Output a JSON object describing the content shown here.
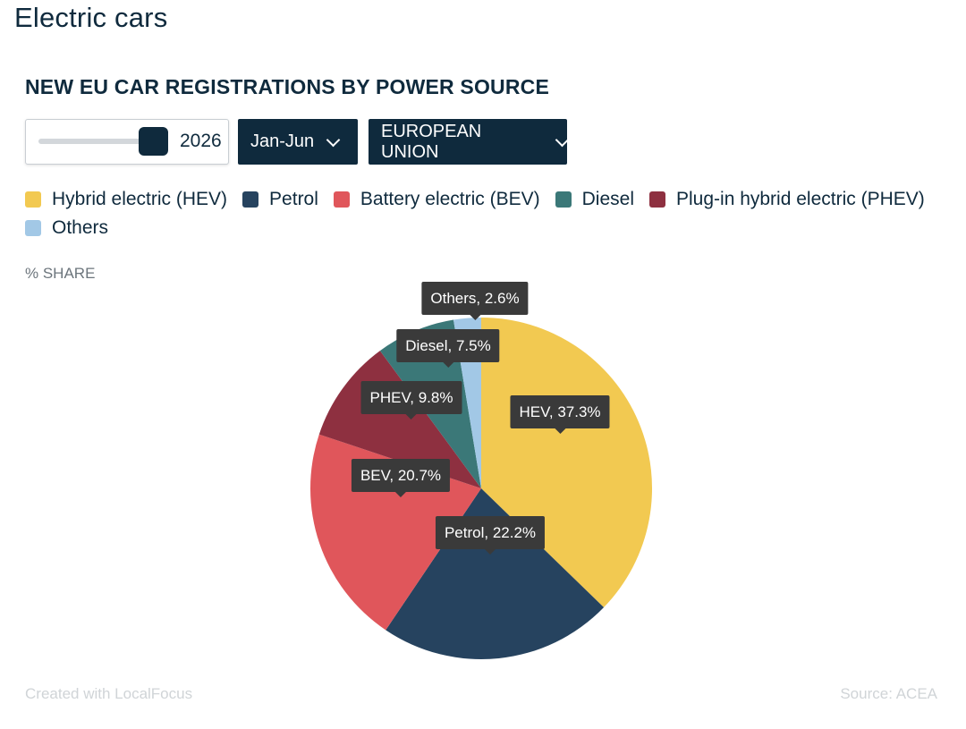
{
  "page": {
    "title": "Electric cars"
  },
  "controls": {
    "year": "2026",
    "period": "Jan-Jun",
    "region": "EUROPEAN UNION"
  },
  "chart_data": {
    "type": "pie",
    "title": "NEW EU CAR REGISTRATIONS BY POWER SOURCE",
    "unit_label": "% SHARE",
    "legend_position": "top",
    "slices": [
      {
        "name": "Hybrid electric (HEV)",
        "short": "HEV",
        "value": 37.3,
        "color": "#f2c951"
      },
      {
        "name": "Petrol",
        "short": "Petrol",
        "value": 22.2,
        "color": "#26435f"
      },
      {
        "name": "Battery electric (BEV)",
        "short": "BEV",
        "value": 20.7,
        "color": "#e0565b"
      },
      {
        "name": "Plug-in hybrid electric (PHEV)",
        "short": "PHEV",
        "value": 9.8,
        "color": "#8e3040"
      },
      {
        "name": "Diesel",
        "short": "Diesel",
        "value": 7.5,
        "color": "#3b7878"
      },
      {
        "name": "Others",
        "short": "Others",
        "value": 2.6,
        "color": "#a2c8e6"
      }
    ],
    "legend": [
      {
        "label": "Hybrid electric (HEV)",
        "color": "#f2c951"
      },
      {
        "label": "Petrol",
        "color": "#26435f"
      },
      {
        "label": "Battery electric (BEV)",
        "color": "#e0565b"
      },
      {
        "label": "Diesel",
        "color": "#3b7878"
      },
      {
        "label": "Plug-in hybrid electric (PHEV)",
        "color": "#8e3040"
      },
      {
        "label": "Others",
        "color": "#a2c8e6"
      }
    ],
    "data_labels": [
      "HEV, 37.3%",
      "Petrol, 22.2%",
      "BEV, 20.7%",
      "PHEV, 9.8%",
      "Diesel, 7.5%",
      "Others, 2.6%"
    ]
  },
  "footer": {
    "credit": "Created with LocalFocus",
    "source": "Source:  ACEA"
  }
}
